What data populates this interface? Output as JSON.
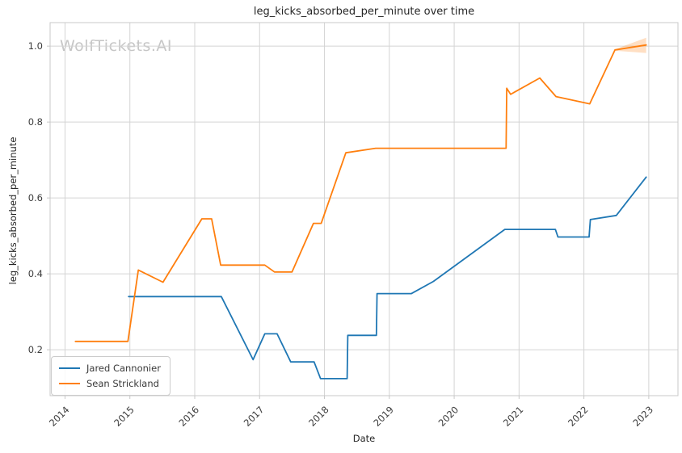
{
  "watermark": "WolfTickets.AI",
  "colors": {
    "grid": "#d4d4d4",
    "spine": "#c8c8c8",
    "tick_text": "#3c3c3c",
    "title_text": "#262626",
    "band": "rgba(255,127,14,0.25)"
  },
  "chart_data": {
    "type": "line",
    "title": "leg_kicks_absorbed_per_minute over time",
    "xlabel": "Date",
    "ylabel": "leg_kicks_absorbed_per_minute",
    "grid": true,
    "legend_position": "lower-left",
    "x_ticks": [
      2014,
      2015,
      2016,
      2017,
      2018,
      2019,
      2020,
      2021,
      2022,
      2023
    ],
    "y_ticks": [
      0.2,
      0.4,
      0.6,
      0.8,
      1.0
    ],
    "xlim": [
      2013.77,
      2023.45
    ],
    "ylim": [
      0.079,
      1.062
    ],
    "series": [
      {
        "name": "Jared Cannonier",
        "color": "#1f77b4",
        "x": [
          2014.98,
          2016.41,
          2016.9,
          2017.08,
          2017.27,
          2017.48,
          2017.84,
          2017.94,
          2018.35,
          2018.36,
          2018.8,
          2018.81,
          2019.34,
          2019.68,
          2020.78,
          2021.56,
          2021.6,
          2022.08,
          2022.1,
          2022.5,
          2022.96
        ],
        "y": [
          0.34,
          0.34,
          0.174,
          0.242,
          0.242,
          0.168,
          0.168,
          0.124,
          0.124,
          0.238,
          0.238,
          0.348,
          0.348,
          0.38,
          0.517,
          0.517,
          0.497,
          0.497,
          0.543,
          0.554,
          0.655
        ]
      },
      {
        "name": "Sean Strickland",
        "color": "#ff7f0e",
        "x": [
          2014.16,
          2014.97,
          2015.13,
          2015.51,
          2016.11,
          2016.26,
          2016.4,
          2017.08,
          2017.23,
          2017.5,
          2017.83,
          2017.95,
          2018.33,
          2018.79,
          2020.8,
          2020.81,
          2020.87,
          2021.32,
          2021.57,
          2022.09,
          2022.48,
          2022.96
        ],
        "y": [
          0.222,
          0.222,
          0.41,
          0.378,
          0.545,
          0.545,
          0.423,
          0.423,
          0.405,
          0.405,
          0.533,
          0.533,
          0.719,
          0.731,
          0.731,
          0.889,
          0.873,
          0.916,
          0.867,
          0.848,
          0.99,
          1.003
        ]
      }
    ],
    "band": {
      "series": "Sean Strickland",
      "x": [
        2022.48,
        2022.96
      ],
      "lo": [
        0.988,
        0.982
      ],
      "hi": [
        0.992,
        1.022
      ]
    }
  }
}
